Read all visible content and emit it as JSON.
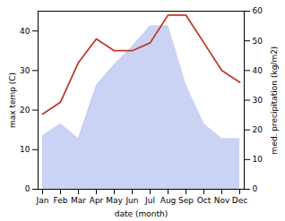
{
  "chart_data": {
    "type": "line",
    "categories": [
      "Jan",
      "Feb",
      "Mar",
      "Apr",
      "May",
      "Jun",
      "Jul",
      "Aug",
      "Sep",
      "Oct",
      "Nov",
      "Dec"
    ],
    "xlabel": "date (month)",
    "ylabel": "max temp (C)",
    "y2label": "med. precipitation (kg/m2)",
    "ylim": [
      0,
      45
    ],
    "yticks": [
      0,
      10,
      20,
      30,
      40
    ],
    "y2lim": [
      0,
      60
    ],
    "y2ticks": [
      0,
      10,
      20,
      30,
      40,
      50,
      60
    ],
    "series": [
      {
        "type": "area",
        "axis": "y2",
        "color": "#b8c4f0",
        "values": [
          18,
          22,
          17,
          35,
          42,
          48,
          55,
          55,
          35,
          22,
          17,
          17
        ]
      },
      {
        "type": "line",
        "color": "#c0392b",
        "values": [
          19,
          22,
          32,
          38,
          35,
          35,
          37,
          44,
          44,
          37,
          30,
          27
        ]
      }
    ]
  }
}
